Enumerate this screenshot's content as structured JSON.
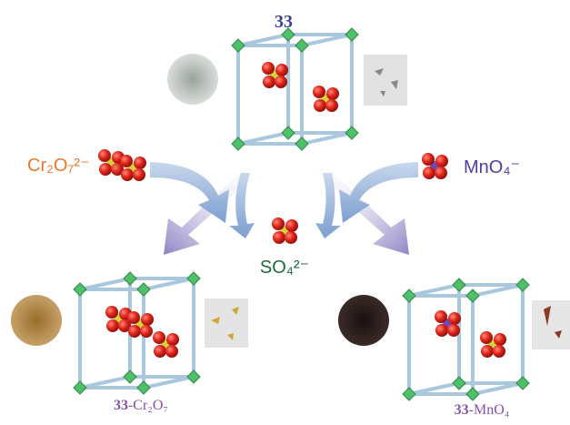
{
  "top_label": "33",
  "anions": {
    "left": "Cr₂O₇²⁻",
    "right": "MnO₄⁻",
    "center": "SO₄²⁻"
  },
  "products": [
    {
      "number": "33",
      "formula": "-Cr₂O₇"
    },
    {
      "number": "33",
      "formula": "-MnO₄"
    }
  ]
}
